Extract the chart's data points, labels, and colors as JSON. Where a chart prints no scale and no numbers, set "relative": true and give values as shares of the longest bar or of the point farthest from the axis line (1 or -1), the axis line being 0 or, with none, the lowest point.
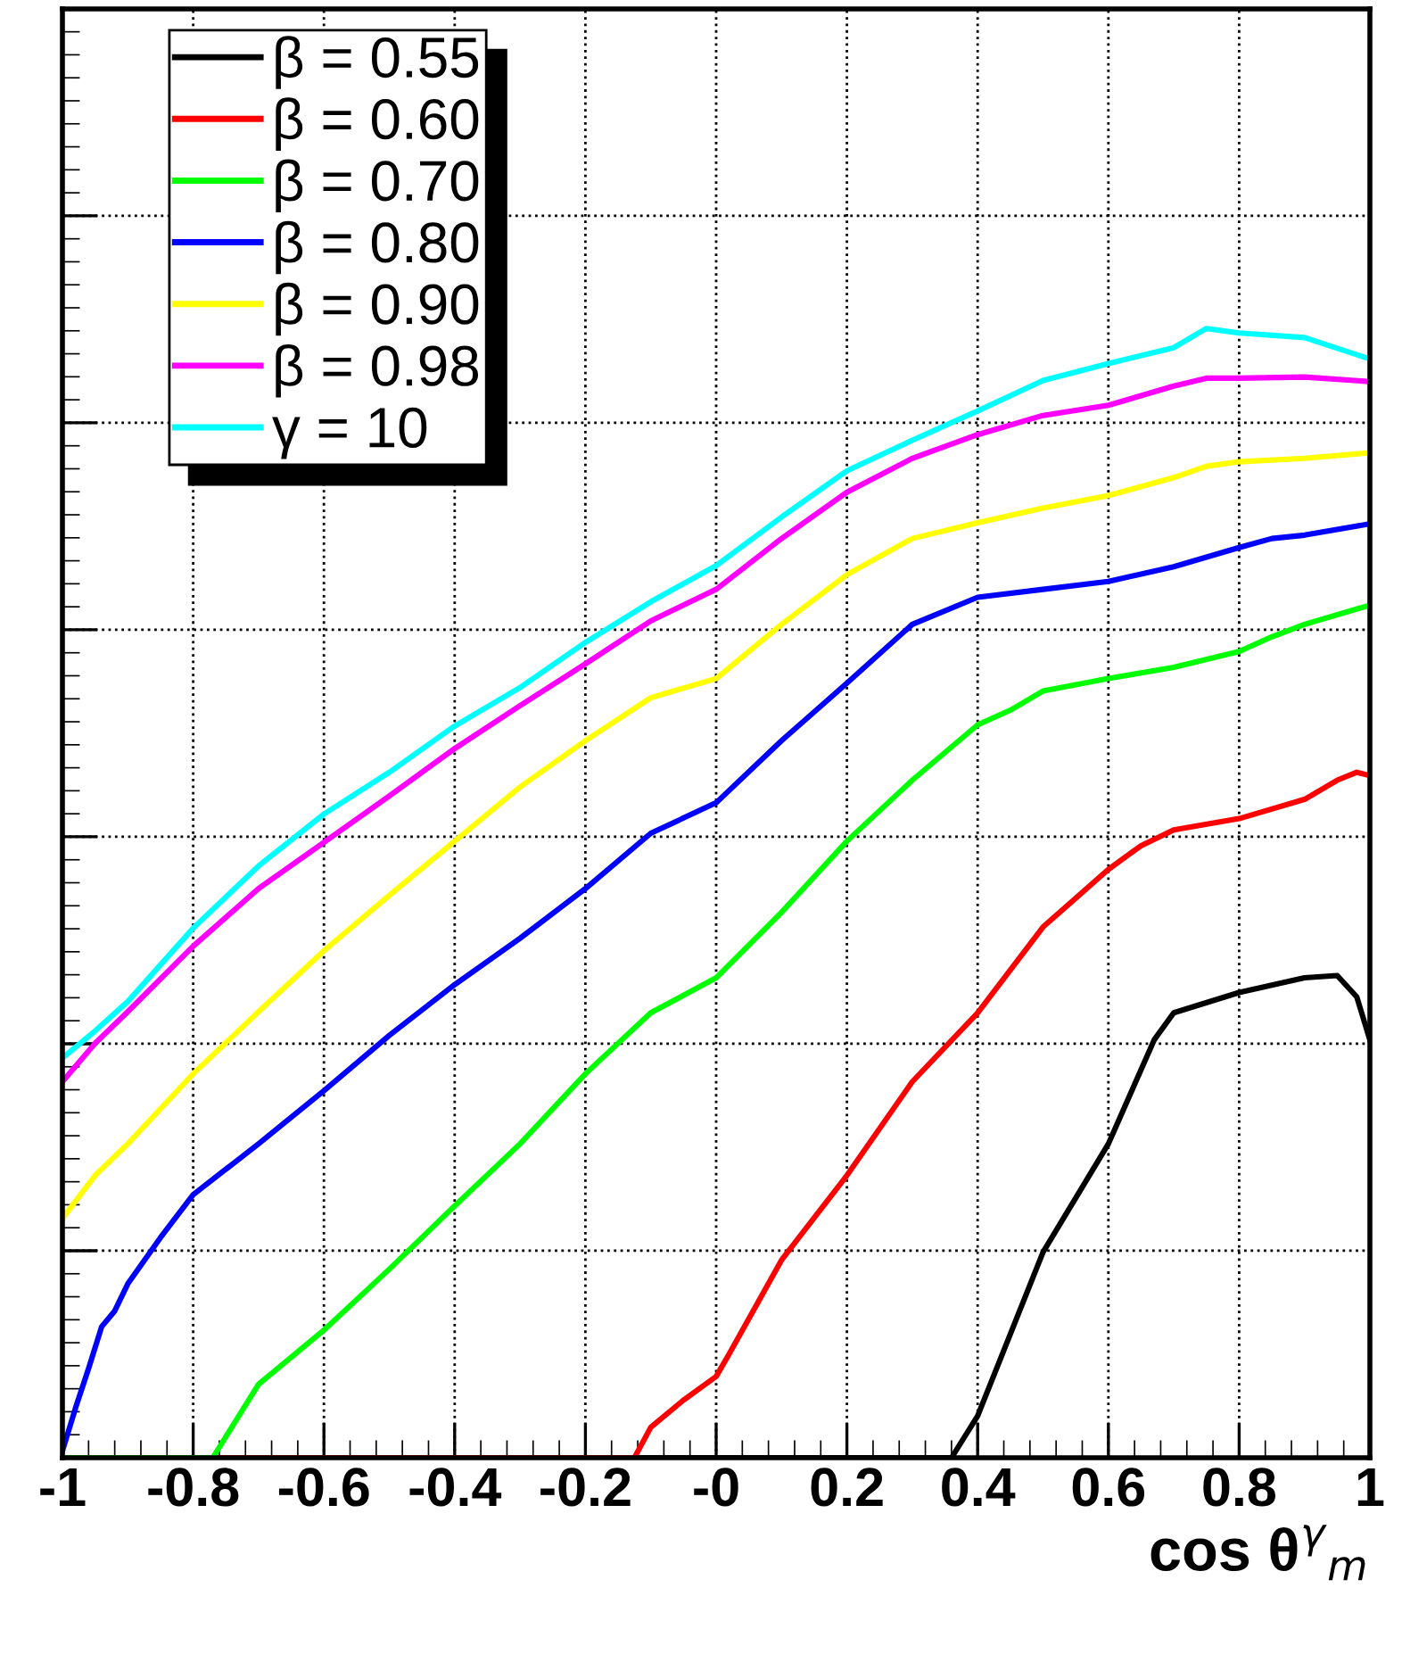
{
  "chart_data": {
    "type": "line",
    "relative": true,
    "xlabel": "cos θ$^{γ}$$_{m}$",
    "xlim": [
      -1,
      1
    ],
    "xticks": [
      -1,
      -0.8,
      -0.6,
      -0.4,
      -0.2,
      {
        "value": 0,
        "label": "-0"
      },
      0.2,
      0.4,
      0.6,
      0.8,
      1
    ],
    "grid": true,
    "legend": "top left",
    "tick_labels": "x",
    "line_style": "solid",
    "marker": "none",
    "series": [
      {
        "name": "β = 0.55",
        "color": "#000000",
        "x": [
          -1,
          0.36,
          0.4,
          0.5,
          0.6,
          0.67,
          0.7,
          0.8,
          0.9,
          0.95,
          0.98,
          1.0
        ],
        "values": [
          0,
          0,
          0.037,
          0.182,
          0.278,
          0.37,
          0.394,
          0.412,
          0.425,
          0.427,
          0.408,
          0.37
        ]
      },
      {
        "name": "β = 0.60",
        "color": "#ff0000",
        "x": [
          -1,
          -0.125,
          -0.1,
          -0.05,
          0,
          0.02,
          0.1,
          0.2,
          0.3,
          0.4,
          0.5,
          0.6,
          0.65,
          0.7,
          0.8,
          0.9,
          0.95,
          0.98,
          1.0
        ],
        "values": [
          0,
          0,
          0.027,
          0.051,
          0.072,
          0.092,
          0.175,
          0.25,
          0.333,
          0.394,
          0.47,
          0.521,
          0.542,
          0.556,
          0.566,
          0.583,
          0.6,
          0.607,
          0.604
        ]
      },
      {
        "name": "β = 0.70",
        "color": "#00ff00",
        "x": [
          -1,
          -0.77,
          -0.7,
          -0.6,
          -0.5,
          -0.4,
          -0.3,
          -0.2,
          -0.1,
          0,
          0.1,
          0.2,
          0.3,
          0.4,
          0.45,
          0.5,
          0.6,
          0.7,
          0.8,
          0.85,
          0.9,
          1.0
        ],
        "values": [
          0,
          0,
          0.065,
          0.113,
          0.167,
          0.223,
          0.278,
          0.34,
          0.394,
          0.425,
          0.483,
          0.546,
          0.6,
          0.649,
          0.662,
          0.679,
          0.69,
          0.7,
          0.714,
          0.727,
          0.738,
          0.755
        ]
      },
      {
        "name": "β = 0.80",
        "color": "#0000ff",
        "x": [
          -1,
          -0.98,
          -0.96,
          -0.94,
          -0.92,
          -0.9,
          -0.85,
          -0.8,
          -0.7,
          -0.6,
          -0.5,
          -0.4,
          -0.3,
          -0.2,
          -0.1,
          0,
          0.1,
          0.2,
          0.3,
          0.4,
          0.5,
          0.6,
          0.7,
          0.8,
          0.85,
          0.9,
          1.0
        ],
        "values": [
          0.006,
          0.044,
          0.079,
          0.116,
          0.13,
          0.154,
          0.195,
          0.233,
          0.278,
          0.325,
          0.374,
          0.419,
          0.46,
          0.504,
          0.553,
          0.58,
          0.635,
          0.686,
          0.738,
          0.762,
          0.769,
          0.776,
          0.789,
          0.806,
          0.814,
          0.817,
          0.827
        ]
      },
      {
        "name": "β = 0.90",
        "color": "#ffff00",
        "x": [
          -1,
          -0.95,
          -0.9,
          -0.8,
          -0.7,
          -0.6,
          -0.5,
          -0.4,
          -0.3,
          -0.2,
          -0.1,
          0,
          0.1,
          0.2,
          0.3,
          0.4,
          0.5,
          0.6,
          0.7,
          0.75,
          0.8,
          0.9,
          1.0
        ],
        "values": [
          0.212,
          0.25,
          0.278,
          0.34,
          0.395,
          0.449,
          0.498,
          0.546,
          0.594,
          0.635,
          0.673,
          0.69,
          0.738,
          0.782,
          0.814,
          0.828,
          0.841,
          0.852,
          0.868,
          0.878,
          0.882,
          0.885,
          0.89
        ]
      },
      {
        "name": "β = 0.98",
        "color": "#ff00ff",
        "x": [
          -1,
          -0.95,
          -0.9,
          -0.8,
          -0.7,
          -0.6,
          -0.5,
          -0.4,
          -0.3,
          -0.2,
          -0.1,
          0,
          0.1,
          0.2,
          0.3,
          0.4,
          0.5,
          0.6,
          0.7,
          0.75,
          0.8,
          0.9,
          1.0
        ],
        "values": [
          0.333,
          0.367,
          0.395,
          0.453,
          0.504,
          0.545,
          0.586,
          0.628,
          0.666,
          0.703,
          0.741,
          0.769,
          0.814,
          0.855,
          0.885,
          0.906,
          0.923,
          0.932,
          0.949,
          0.956,
          0.956,
          0.957,
          0.953
        ]
      },
      {
        "name": "γ = 10",
        "color": "#00ffff",
        "x": [
          -1,
          -0.95,
          -0.9,
          -0.8,
          -0.7,
          -0.6,
          -0.5,
          -0.4,
          -0.3,
          -0.2,
          -0.1,
          0,
          0.1,
          0.2,
          0.3,
          0.4,
          0.5,
          0.6,
          0.7,
          0.75,
          0.8,
          0.9,
          1.0
        ],
        "values": [
          0.354,
          0.378,
          0.404,
          0.469,
          0.524,
          0.57,
          0.607,
          0.648,
          0.682,
          0.722,
          0.758,
          0.79,
          0.833,
          0.874,
          0.901,
          0.927,
          0.954,
          0.969,
          0.983,
          1,
          0.996,
          0.992,
          0.973
        ]
      }
    ]
  }
}
